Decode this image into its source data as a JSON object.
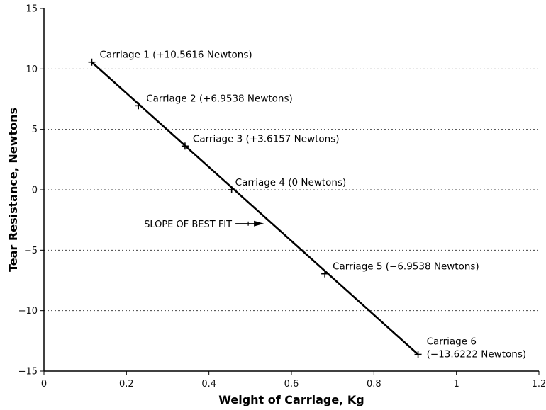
{
  "chart_data": {
    "type": "scatter",
    "xlabel": "Weight of Carriage, Kg",
    "ylabel": "Tear Resistance, Newtons",
    "xlim": [
      0,
      1.2
    ],
    "ylim": [
      -15,
      15
    ],
    "x_ticks": [
      0,
      0.2,
      0.4,
      0.6,
      0.8,
      1,
      1.2
    ],
    "x_tick_labels": [
      "0",
      "0.2",
      "0.4",
      "0.6",
      "0.8",
      "1",
      "1.2"
    ],
    "y_ticks": [
      -15,
      -10,
      -5,
      0,
      5,
      10,
      15
    ],
    "y_tick_labels": [
      "−15",
      "−10",
      "−5",
      "0",
      "5",
      "10",
      "15"
    ],
    "gridlines": "horizontal-dotted",
    "series": [
      {
        "points": [
          {
            "x": 0.116,
            "y": 10.5616,
            "label": "Carriage 1 (+10.5616 Newtons)"
          },
          {
            "x": 0.229,
            "y": 6.9538,
            "label": "Carriage 2 (+6.9538 Newtons)"
          },
          {
            "x": 0.342,
            "y": 3.6157,
            "label": "Carriage 3 (+3.6157 Newtons)"
          },
          {
            "x": 0.455,
            "y": 0,
            "label": "Carriage 4 (0 Newtons)"
          },
          {
            "x": 0.681,
            "y": -6.9538,
            "label": "Carriage 5 (−6.9538 Newtons)"
          },
          {
            "x": 0.907,
            "y": -13.6222,
            "label_lines": [
              "Carriage 6",
              "(−13.6222 Newtons)"
            ]
          }
        ]
      }
    ],
    "best_fit_line": {
      "x": [
        0.116,
        0.907
      ],
      "y": [
        10.5616,
        -13.6222
      ]
    },
    "annotation": {
      "text": "SLOPE OF BEST FIT",
      "x": 0.54,
      "y": -2.8
    }
  }
}
